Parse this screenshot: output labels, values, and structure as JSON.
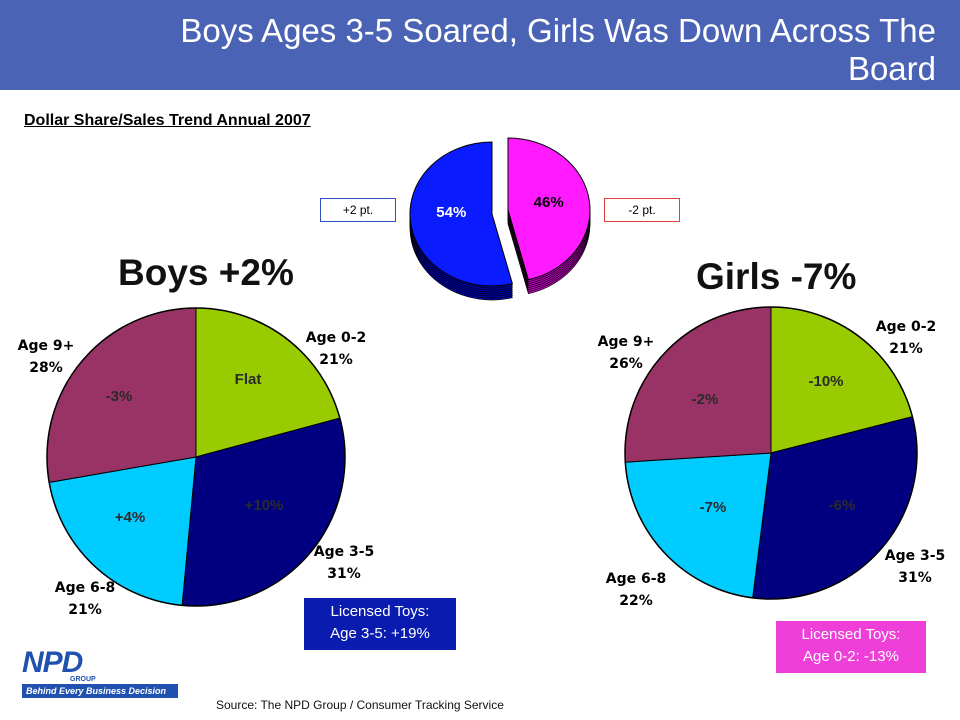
{
  "title": "Boys Ages 3-5 Soared, Girls Was Down Across The Board",
  "subtitle": "Dollar Share/Sales Trend Annual 2007",
  "source": "Source:  The NPD Group / Consumer Tracking Service",
  "logo": {
    "mark": "NPD",
    "group": "GROUP",
    "tagline": "Behind Every Business Decision"
  },
  "colors": {
    "title_bar": "#4a63b5",
    "boys": "#0a1cff",
    "girls": "#ff1aff",
    "age_0_2": "#99cc00",
    "age_3_5": "#000080",
    "age_6_8": "#00ccff",
    "age_9_plus": "#993366"
  },
  "chart_data": [
    {
      "type": "pie",
      "title": "",
      "slices": [
        {
          "label": "",
          "value": 54,
          "value_label": "54%",
          "change_label": "+2 pt."
        },
        {
          "label": "",
          "value": 46,
          "value_label": "46%",
          "change_label": "-2 pt."
        }
      ]
    },
    {
      "type": "pie",
      "title": "Boys +2%",
      "slices": [
        {
          "label": "Age 0-2",
          "value": 21,
          "value_label": "21%",
          "change_label": "Flat"
        },
        {
          "label": "Age 3-5",
          "value": 31,
          "value_label": "31%",
          "change_label": "+10%"
        },
        {
          "label": "Age 6-8",
          "value": 21,
          "value_label": "21%",
          "change_label": "+4%"
        },
        {
          "label": "Age 9+",
          "value": 28,
          "value_label": "28%",
          "change_label": "-3%"
        }
      ],
      "note_lines": [
        "Licensed Toys:",
        "Age 3-5: +19%"
      ]
    },
    {
      "type": "pie",
      "title": "Girls -7%",
      "slices": [
        {
          "label": "Age 0-2",
          "value": 21,
          "value_label": "21%",
          "change_label": "-10%"
        },
        {
          "label": "Age 3-5",
          "value": 31,
          "value_label": "31%",
          "change_label": "-6%"
        },
        {
          "label": "Age 6-8",
          "value": 22,
          "value_label": "22%",
          "change_label": "-7%"
        },
        {
          "label": "Age 9+",
          "value": 26,
          "value_label": "26%",
          "change_label": "-2%"
        }
      ],
      "note_lines": [
        "Licensed Toys:",
        "Age 0-2: -13%"
      ]
    }
  ]
}
